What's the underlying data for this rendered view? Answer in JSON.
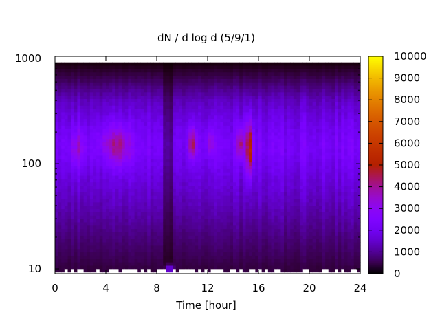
{
  "chart_data": {
    "type": "heatmap",
    "title": "dN / d log d (5/9/1)",
    "xlabel": "Time [hour]",
    "ylabel": "",
    "x_range": [
      0,
      24
    ],
    "x_ticks": [
      0,
      4,
      8,
      12,
      16,
      20,
      24
    ],
    "x_tick_labels": [
      "0",
      "4",
      "8",
      "12",
      "16",
      "20",
      "24"
    ],
    "y_scale": "log",
    "y_range": [
      9,
      1050
    ],
    "y_ticks": [
      10,
      100,
      1000
    ],
    "y_tick_labels": [
      "10",
      "100",
      "1000"
    ],
    "colorbar": {
      "range": [
        0,
        10000
      ],
      "ticks": [
        0,
        1000,
        2000,
        3000,
        4000,
        5000,
        6000,
        7000,
        8000,
        9000,
        10000
      ],
      "tick_labels": [
        "0",
        "1000",
        "2000",
        "3000",
        "4000",
        "5000",
        "6000",
        "7000",
        "8000",
        "9000",
        "10000"
      ],
      "colormap": "gnuplot"
    },
    "grid": false,
    "background_profile": {
      "log_d": [
        1.0,
        1.3,
        1.6,
        1.9,
        2.1,
        2.2,
        2.4,
        2.6,
        2.8,
        2.95
      ],
      "value": [
        400,
        800,
        1300,
        1800,
        2200,
        2250,
        1900,
        1400,
        600,
        100
      ]
    },
    "features": [
      {
        "t": 1.8,
        "width_h": 0.6,
        "logd": 2.15,
        "spread": 0.2,
        "amp": 1100
      },
      {
        "t": 4.5,
        "width_h": 1.1,
        "logd": 2.2,
        "spread": 0.18,
        "amp": 1000
      },
      {
        "t": 5.2,
        "width_h": 0.9,
        "logd": 2.15,
        "spread": 0.2,
        "amp": 1000
      },
      {
        "t": 10.8,
        "width_h": 0.3,
        "logd": 2.2,
        "spread": 0.15,
        "amp": 2400
      },
      {
        "t": 12.2,
        "width_h": 0.3,
        "logd": 2.2,
        "spread": 0.12,
        "amp": 1400
      },
      {
        "t": 14.6,
        "width_h": 0.25,
        "logd": 2.2,
        "spread": 0.15,
        "amp": 2200
      },
      {
        "t": 15.3,
        "width_h": 0.25,
        "logd": 2.15,
        "spread": 0.25,
        "amp": 3600
      },
      {
        "t": 9.0,
        "width_h": 0.3,
        "logd": 1.0,
        "spread": 0.04,
        "amp": 1800
      }
    ],
    "dips": [
      {
        "t": 8.8,
        "width_h": 0.4,
        "factor": 0.45
      }
    ]
  }
}
